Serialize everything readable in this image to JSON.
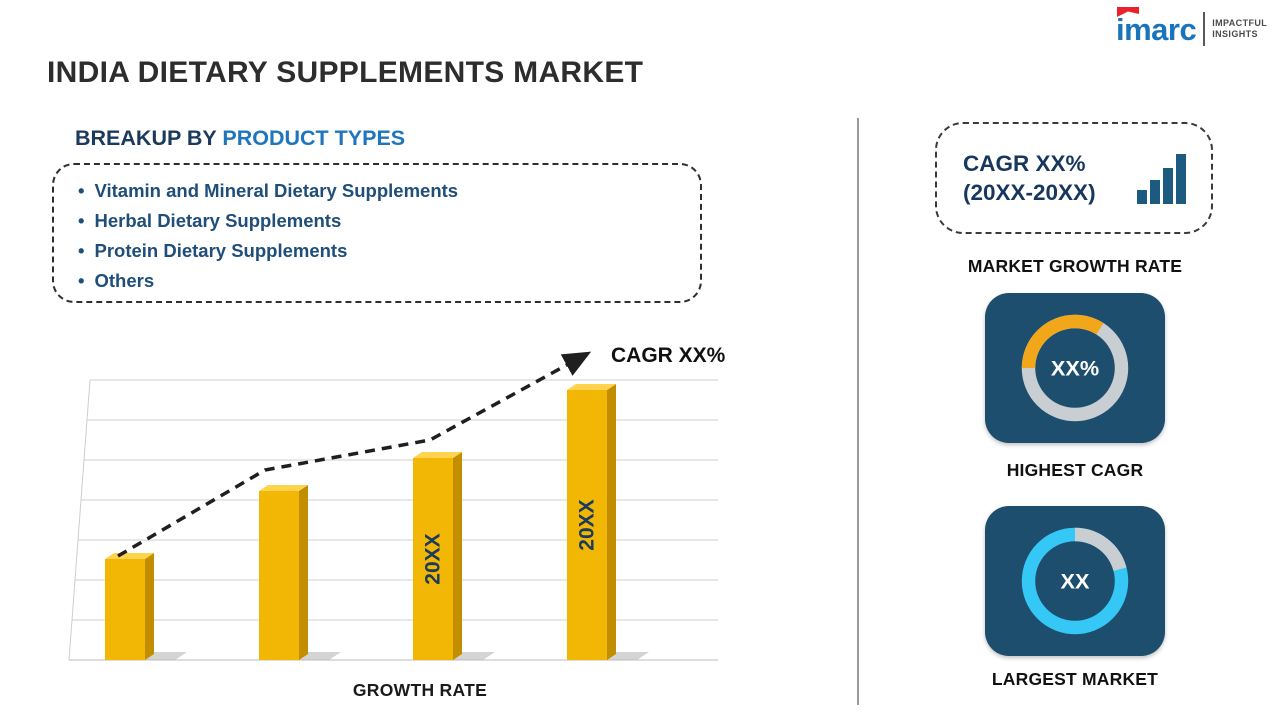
{
  "logo": {
    "brand": "imarc",
    "tagline_line1": "IMPACTFUL",
    "tagline_line2": "INSIGHTS"
  },
  "title": "INDIA DIETARY SUPPLEMENTS MARKET",
  "breakup": {
    "heading_prefix": "BREAKUP BY ",
    "heading_highlight": "PRODUCT TYPES",
    "items": [
      "Vitamin and Mineral Dietary Supplements",
      "Herbal Dietary Supplements",
      "Protein Dietary Supplements",
      "Others"
    ]
  },
  "right_panel": {
    "cagr_box": {
      "line1": "CAGR XX%",
      "line2": "(20XX-20XX)"
    },
    "market_growth_label": "MARKET GROWTH RATE",
    "highest_cagr_label": "HIGHEST CAGR",
    "largest_market_label": "LARGEST MARKET"
  },
  "colors": {
    "bar_yellow": "#F2B705",
    "bar_yellow_dark": "#C28E00",
    "bar_yellow_light": "#FFD34D",
    "navy_tile": "#1D4E6D",
    "accent_blue": "#2076BC",
    "dark_navy_text": "#1B3A5C",
    "donut_gray": "#C9CED3",
    "donut_yellow": "#F2A71B",
    "donut_cyan": "#35C7F5",
    "logo_blue": "#1A74BB",
    "logo_red": "#E8222A"
  },
  "chart_data": [
    {
      "type": "bar",
      "title": "India Dietary Supplements Market growth trend (values masked)",
      "xlabel": "GROWTH RATE",
      "ylabel": "",
      "ylim": [
        0,
        80
      ],
      "grid": true,
      "bars": [
        {
          "value": 28,
          "label": ""
        },
        {
          "value": 47,
          "label": ""
        },
        {
          "value": 56,
          "label": "20XX"
        },
        {
          "value": 75,
          "label": "20XX"
        }
      ],
      "trend_annotation": "CAGR XX%",
      "trend": "ascending dashed arrow"
    },
    {
      "type": "pie",
      "title": "HIGHEST CAGR",
      "center_text": "XX%",
      "segments": [
        {
          "name": "highlight",
          "fraction": 0.34,
          "color": "#F2A71B"
        },
        {
          "name": "remainder",
          "fraction": 0.66,
          "color": "#C9CED3"
        }
      ],
      "legend_position": "none"
    },
    {
      "type": "pie",
      "title": "LARGEST MARKET",
      "center_text": "XX",
      "segments": [
        {
          "name": "highlight",
          "fraction": 0.79,
          "color": "#35C7F5"
        },
        {
          "name": "remainder",
          "fraction": 0.21,
          "color": "#C9CED3"
        }
      ],
      "legend_position": "none"
    }
  ]
}
